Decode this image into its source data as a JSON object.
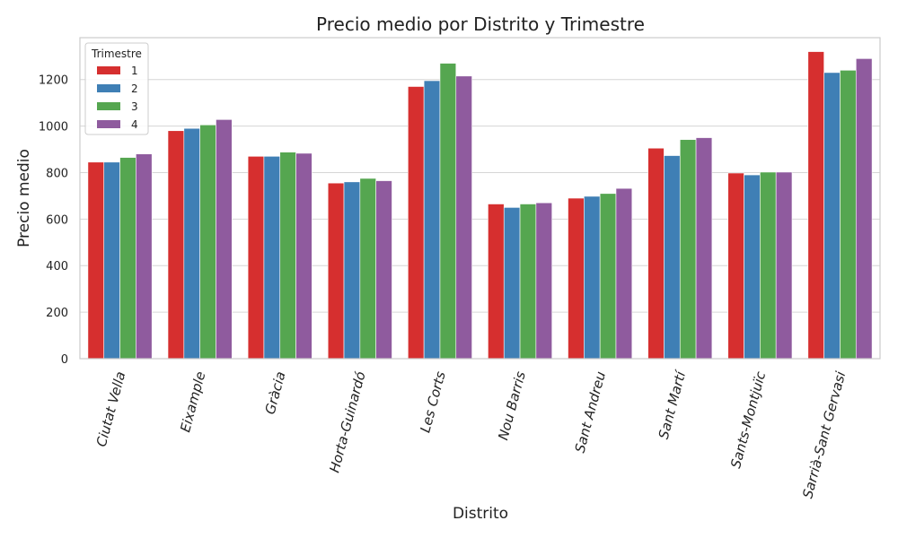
{
  "chart_data": {
    "type": "bar",
    "title": "Precio medio por Distrito y Trimestre",
    "xlabel": "Distrito",
    "ylabel": "Precio medio",
    "ylim": [
      0,
      1380
    ],
    "yticks": [
      0,
      200,
      400,
      600,
      800,
      1000,
      1200
    ],
    "grid": true,
    "legend": {
      "title": "Trimestre",
      "placement": "top-left"
    },
    "categories": [
      "Ciutat Vella",
      "Eixample",
      "Gràcia",
      "Horta-Guinardó",
      "Les Corts",
      "Nou Barris",
      "Sant Andreu",
      "Sant Martí",
      "Sants-Montjuïc",
      "Sarrià-Sant Gervasi"
    ],
    "series": [
      {
        "name": "1",
        "color": "#d62f2f",
        "values": [
          845,
          980,
          870,
          755,
          1170,
          665,
          690,
          905,
          798,
          1320
        ]
      },
      {
        "name": "2",
        "color": "#3f7fb5",
        "values": [
          845,
          990,
          870,
          760,
          1195,
          650,
          698,
          873,
          790,
          1230
        ]
      },
      {
        "name": "3",
        "color": "#55a650",
        "values": [
          865,
          1005,
          888,
          775,
          1270,
          665,
          710,
          942,
          802,
          1240
        ]
      },
      {
        "name": "4",
        "color": "#8f5b9e",
        "values": [
          880,
          1028,
          883,
          765,
          1215,
          670,
          732,
          950,
          802,
          1290
        ]
      }
    ]
  }
}
